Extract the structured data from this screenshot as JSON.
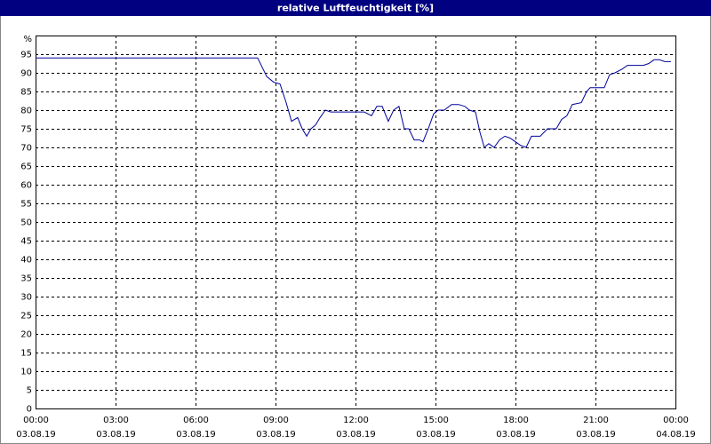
{
  "chart_data": {
    "type": "line",
    "title": "relative Luftfeuchtigkeit [%]",
    "y_label": "%",
    "color": "#00009c",
    "grid": true,
    "x": [
      0,
      8.33,
      8.67,
      8.93,
      9.17,
      9.4,
      9.6,
      9.83,
      10,
      10.17,
      10.33,
      10.5,
      10.67,
      10.87,
      11.07,
      12.33,
      12.6,
      12.8,
      13,
      13.23,
      13.43,
      13.63,
      13.83,
      14,
      14.2,
      14.4,
      14.53,
      14.73,
      14.93,
      15.1,
      15.33,
      15.6,
      15.87,
      16.1,
      16.27,
      16.5,
      16.67,
      16.83,
      17,
      17.2,
      17.4,
      17.6,
      17.8,
      18,
      18.2,
      18.4,
      18.6,
      18.93,
      19.2,
      19.53,
      19.73,
      19.93,
      20.13,
      20.47,
      20.67,
      20.8,
      21.33,
      21.53,
      21.73,
      22,
      22.2,
      22.8,
      23,
      23.2,
      23.4,
      23.6,
      23.83
    ],
    "values": [
      94,
      94,
      89,
      87.5,
      87,
      82,
      77,
      78,
      75,
      73,
      75,
      76,
      78,
      80,
      79.5,
      79.5,
      78.5,
      81,
      81,
      77,
      80,
      81,
      75,
      75,
      72,
      72,
      71.5,
      75,
      79,
      80,
      80,
      81.5,
      81.5,
      81,
      80,
      79.5,
      74,
      70,
      71,
      70,
      72,
      73,
      72.5,
      71.5,
      70.5,
      70,
      73,
      73,
      75,
      75,
      77.5,
      78.5,
      81.5,
      82,
      85,
      86,
      86,
      89.5,
      90,
      91,
      92,
      92,
      92.5,
      93.5,
      93.5,
      93,
      93
    ],
    "xlim": [
      0,
      24
    ],
    "xticks": [
      {
        "value": 0,
        "label": "00:00"
      },
      {
        "value": 3,
        "label": "03:00"
      },
      {
        "value": 6,
        "label": "06:00"
      },
      {
        "value": 9,
        "label": "09:00"
      },
      {
        "value": 12,
        "label": "12:00"
      },
      {
        "value": 15,
        "label": "15:00"
      },
      {
        "value": 18,
        "label": "18:00"
      },
      {
        "value": 21,
        "label": "21:00"
      },
      {
        "value": 24,
        "label": "00:00"
      }
    ],
    "xtick_dates": [
      "03.08.19",
      "03.08.19",
      "03.08.19",
      "03.08.19",
      "03.08.19",
      "03.08.19",
      "03.08.19",
      "03.08.19",
      "04.08.19"
    ],
    "ylim": [
      0,
      100
    ],
    "yticks": [
      0,
      5,
      10,
      15,
      20,
      25,
      30,
      35,
      40,
      45,
      50,
      55,
      60,
      65,
      70,
      75,
      80,
      85,
      90,
      95
    ]
  }
}
